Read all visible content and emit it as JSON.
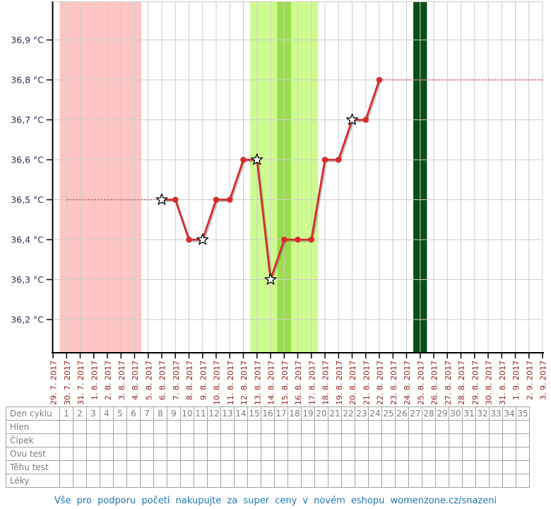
{
  "chart_data": {
    "type": "line",
    "title": "",
    "xlabel": "",
    "ylabel": "",
    "grid": true,
    "legend_position": "none",
    "x_dates": [
      "29. 7. 2017",
      "30. 7. 2017",
      "31. 7. 2017",
      "1. 8. 2017",
      "2. 8. 2017",
      "3. 8. 2017",
      "4. 8. 2017",
      "5. 8. 2017",
      "6. 8. 2017",
      "7. 8. 2017",
      "8. 8. 2017",
      "9. 8. 2017",
      "10. 8. 2017",
      "11. 8. 2017",
      "12. 8. 2017",
      "13. 8. 2017",
      "14. 8. 2017",
      "15. 8. 2017",
      "16. 8. 2017",
      "17. 8. 2017",
      "18. 8. 2017",
      "19. 8. 2017",
      "20. 8. 2017",
      "21. 8. 2017",
      "22. 8. 2017",
      "23. 8. 2017",
      "24. 8. 2017",
      "25. 8. 2017",
      "26. 8. 2017",
      "27. 8. 2017",
      "28. 8. 2017",
      "29. 8. 2017",
      "30. 8. 2017",
      "31. 8. 2017",
      "1. 9. 2017",
      "2. 9. 2017",
      "3. 9. 2017"
    ],
    "y_ticks": [
      {
        "value": 36.9,
        "label": "36,9 °C"
      },
      {
        "value": 36.8,
        "label": "36,8 °C"
      },
      {
        "value": 36.7,
        "label": "36,7 °C"
      },
      {
        "value": 36.6,
        "label": "36,6 °C"
      },
      {
        "value": 36.5,
        "label": "36,5 °C"
      },
      {
        "value": 36.4,
        "label": "36,4 °C"
      },
      {
        "value": 36.3,
        "label": "36,3 °C"
      },
      {
        "value": 36.2,
        "label": "36,2 °C"
      }
    ],
    "ylim": [
      36.12,
      37.0
    ],
    "series": [
      {
        "name": "bazalni-teplota",
        "color": "#d62c2c",
        "points": [
          {
            "date": "6. 8. 2017",
            "value": 36.5,
            "star": true
          },
          {
            "date": "7. 8. 2017",
            "value": 36.5,
            "star": false
          },
          {
            "date": "8. 8. 2017",
            "value": 36.4,
            "star": false
          },
          {
            "date": "9. 8. 2017",
            "value": 36.4,
            "star": true
          },
          {
            "date": "10. 8. 2017",
            "value": 36.5,
            "star": false
          },
          {
            "date": "11. 8. 2017",
            "value": 36.5,
            "star": false
          },
          {
            "date": "12. 8. 2017",
            "value": 36.6,
            "star": false
          },
          {
            "date": "13. 8. 2017",
            "value": 36.6,
            "star": true
          },
          {
            "date": "14. 8. 2017",
            "value": 36.3,
            "star": true
          },
          {
            "date": "15. 8. 2017",
            "value": 36.4,
            "star": false
          },
          {
            "date": "16. 8. 2017",
            "value": 36.4,
            "star": false
          },
          {
            "date": "17. 8. 2017",
            "value": 36.4,
            "star": false
          },
          {
            "date": "18. 8. 2017",
            "value": 36.6,
            "star": false
          },
          {
            "date": "19. 8. 2017",
            "value": 36.6,
            "star": false
          },
          {
            "date": "20. 8. 2017",
            "value": 36.7,
            "star": true
          },
          {
            "date": "21. 8. 2017",
            "value": 36.7,
            "star": false
          },
          {
            "date": "22. 8. 2017",
            "value": 36.8,
            "star": false
          }
        ]
      }
    ],
    "reference_lines": [
      {
        "name": "dotted-baseline-low",
        "value": 36.5,
        "from": "30. 7. 2017",
        "to": "6. 8. 2017",
        "style": "dotted"
      },
      {
        "name": "dotted-baseline-high",
        "value": 36.8,
        "from": "22. 8. 2017",
        "to": "3. 9. 2017",
        "style": "dotted"
      }
    ],
    "zones": [
      {
        "name": "menstruation",
        "from": "30. 7. 2017",
        "to": "4. 8. 2017",
        "color": "#ffc4c4"
      },
      {
        "name": "fertile-window",
        "from": "13. 8. 2017",
        "to": "17. 8. 2017",
        "color": "#cefb90"
      },
      {
        "name": "ovulation-day",
        "from": "15. 8. 2017",
        "to": "15. 8. 2017",
        "color": "#9add4b"
      },
      {
        "name": "expected-menstruation",
        "from": "25. 8. 2017",
        "to": "25. 8. 2017",
        "color": "#084f15"
      }
    ],
    "colors": {
      "line": "#d62c2c",
      "grid": "#cccccc",
      "axis": "#000000",
      "x_label": "#8e1b1b",
      "y_label": "#2c2c54",
      "star_fill": "#ffffff",
      "star_stroke": "#111111"
    }
  },
  "table": {
    "rows": [
      {
        "label": "Den cyklu",
        "cells": [
          "1",
          "2",
          "3",
          "4",
          "5",
          "6",
          "7",
          "8",
          "9",
          "10",
          "11",
          "12",
          "13",
          "14",
          "15",
          "16",
          "17",
          "18",
          "19",
          "20",
          "21",
          "22",
          "23",
          "24",
          "25",
          "26",
          "27",
          "28",
          "29",
          "30",
          "31",
          "32",
          "33",
          "34",
          "35"
        ]
      },
      {
        "label": "Hlen",
        "cells": []
      },
      {
        "label": "Čípek",
        "cells": []
      },
      {
        "label": "Ovu test",
        "cells": []
      },
      {
        "label": "Těhu test",
        "cells": []
      },
      {
        "label": "Léky",
        "cells": []
      }
    ],
    "num_days": 35
  },
  "footer": {
    "text": "Vše pro podporu početí nakupujte za super ceny v novém eshopu womenzone.cz/snazeni"
  }
}
